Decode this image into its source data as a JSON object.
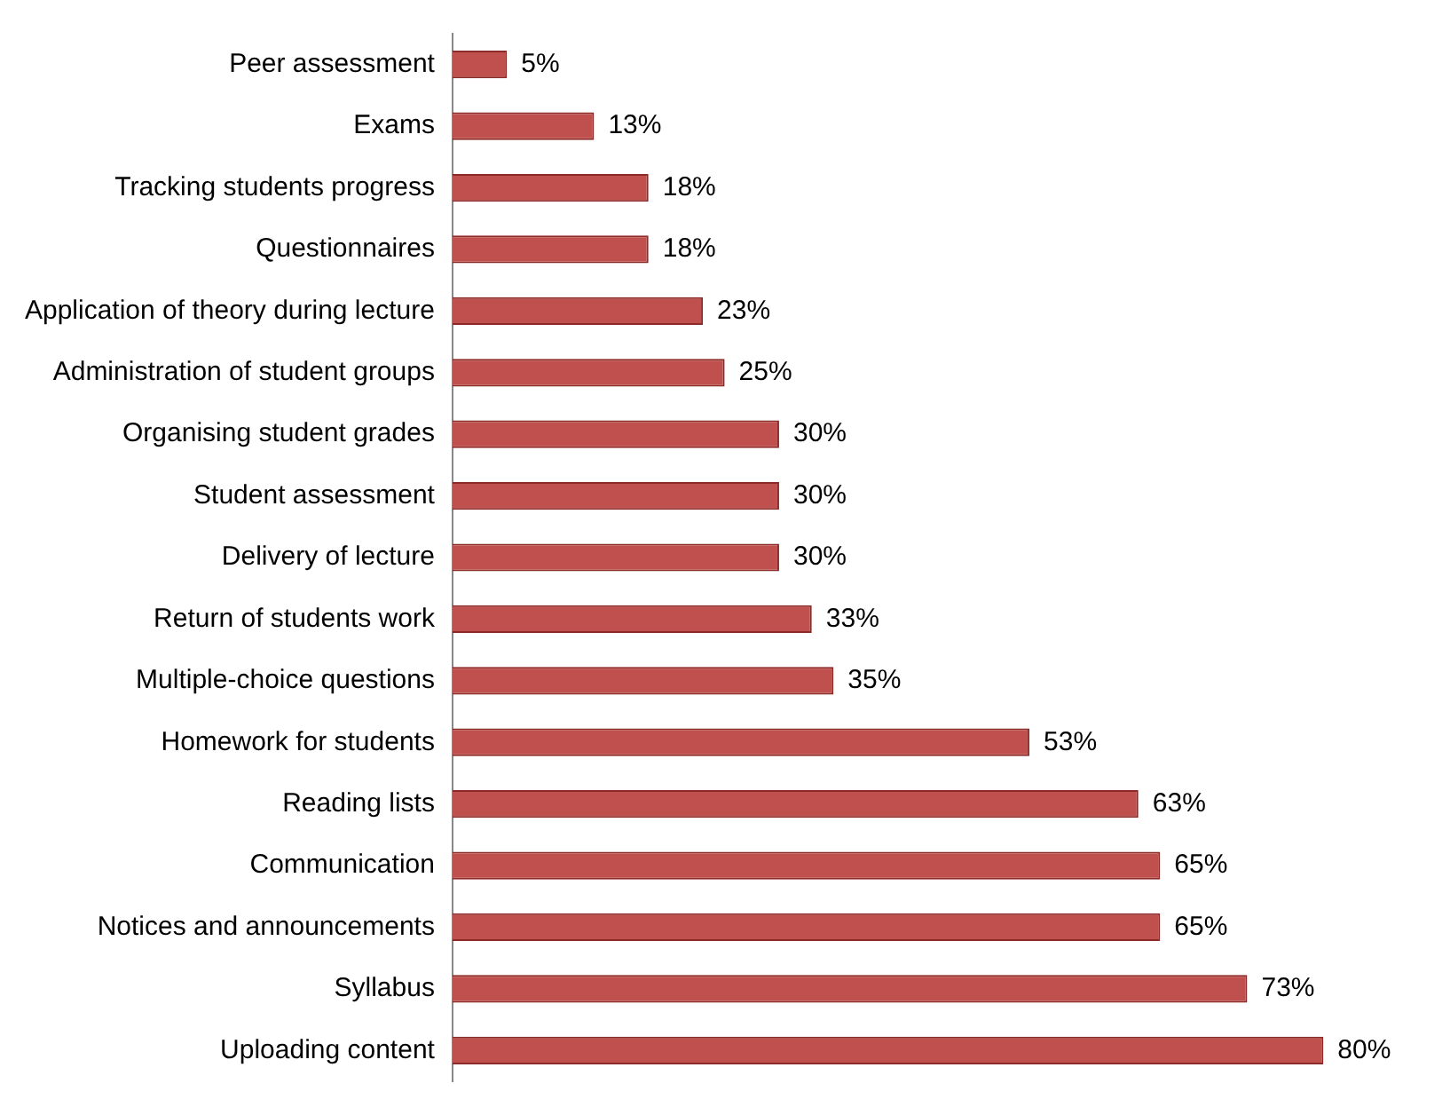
{
  "chart_data": {
    "type": "bar",
    "orientation": "horizontal",
    "categories": [
      "Peer assessment",
      "Exams",
      "Tracking students progress",
      "Questionnaires",
      "Application of theory during lecture",
      "Administration of student groups",
      "Organising student grades",
      "Student assessment",
      "Delivery of lecture",
      "Return of students work",
      "Multiple-choice questions",
      "Homework for students",
      "Reading lists",
      "Communication",
      "Notices and announcements",
      "Syllabus",
      "Uploading content"
    ],
    "values": [
      5,
      13,
      18,
      18,
      23,
      25,
      30,
      30,
      30,
      33,
      35,
      53,
      63,
      65,
      65,
      73,
      80
    ],
    "value_labels": [
      "5%",
      "13%",
      "18%",
      "18%",
      "23%",
      "25%",
      "30%",
      "30%",
      "30%",
      "33%",
      "35%",
      "53%",
      "63%",
      "65%",
      "65%",
      "73%",
      "80%"
    ],
    "color": "#c0504d",
    "grid": false,
    "legend": false,
    "tick_labels": "y"
  }
}
